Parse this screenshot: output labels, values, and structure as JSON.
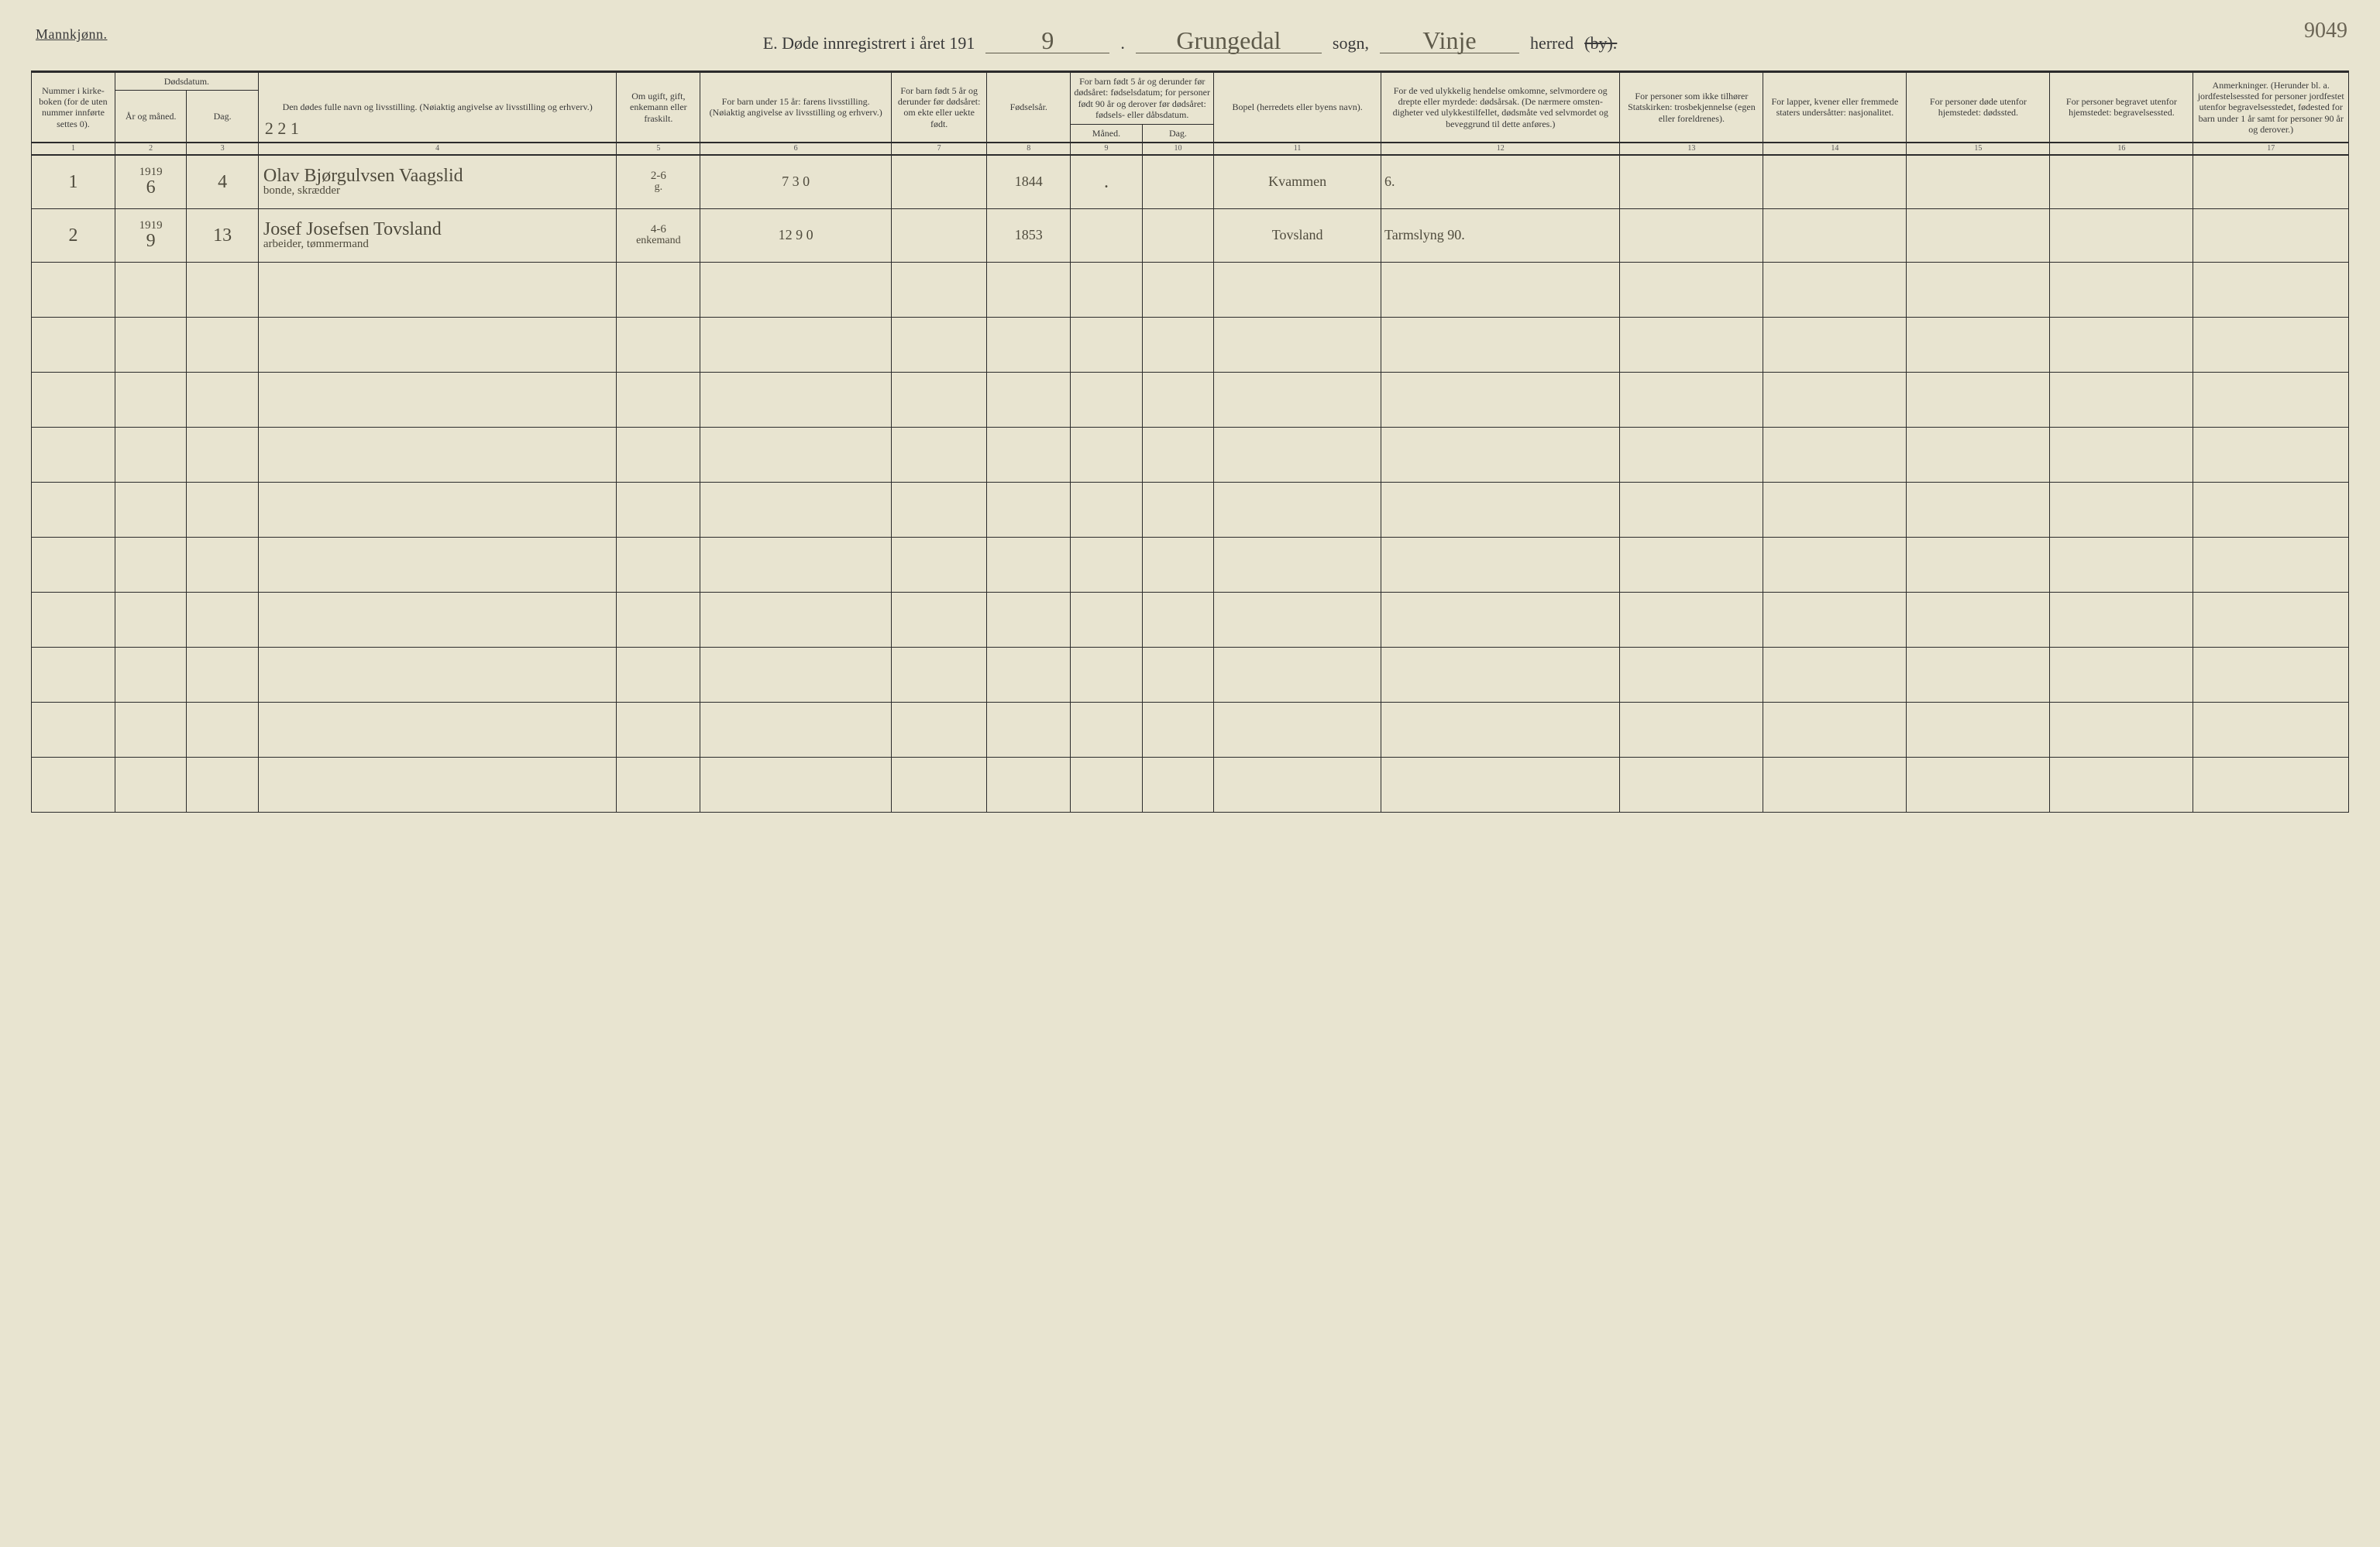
{
  "page_number_handwritten": "9049",
  "corner_label": "Mannkjønn.",
  "title": {
    "prefix": "E. Døde innregistrert i året 191",
    "year_digit": "9",
    "dot": ".",
    "parish_word": "sogn,",
    "district_word": "herred",
    "by_struck": "(by).",
    "parish_value": "Grungedal",
    "district_value": "Vinje"
  },
  "headers": {
    "col1": "Nummer i kirke­boken (for de uten nummer innførte settes 0).",
    "col23": "Dødsdatum.",
    "col2": "År og måned.",
    "col3": "Dag.",
    "col4": "Den dødes fulle navn og livsstilling. (Nøiaktig angivelse av livsstilling og erhverv.)",
    "col4_hw": "2 2 1",
    "col5": "Om ugift, gift, enke­mann eller fraskilt.",
    "col6": "For barn under 15 år: farens livsstilling. (Nøiaktig angivelse av livsstilling og erhverv.)",
    "col7": "For barn født 5 år og derunder før dødsåret: om ekte eller uekte født.",
    "col8": "Fødsels­år.",
    "col910_top": "For barn født 5 år og derunder før dødsåret: fødselsdatum; for personer født 90 år og derover før dødsåret: fødsels- eller dåbsdatum.",
    "col9": "Måned.",
    "col10": "Dag.",
    "col11": "Bopel (herredets eller byens navn).",
    "col12": "For de ved ulykkelig hendelse omkomne, selvmordere og drepte eller myrdede: dødsårsak. (De nærmere omsten­digheter ved ulykkes­tilfellet, dødsmåte ved selvmordet og beveg­grund til dette anføres.)",
    "col13": "For personer som ikke tilhører Statskirken: trosbekjennelse (egen eller foreldrenes).",
    "col14": "For lapper, kvener eller fremmede staters undersåtter: nasjonalitet.",
    "col15": "For personer døde utenfor hjemstedet: dødssted.",
    "col16": "For personer begravet utenfor hjemstedet: begravelsessted.",
    "col17": "Anmerkninger. (Herunder bl. a. jordfestelsessted for personer jordfestet utenfor begravelses­stedet, fødested for barn under 1 år samt for personer 90 år og derover.)"
  },
  "colnums": [
    "1",
    "2",
    "3",
    "4",
    "5",
    "6",
    "7",
    "8",
    "9",
    "10",
    "11",
    "12",
    "13",
    "14",
    "15",
    "16",
    "17"
  ],
  "rows": [
    {
      "c1": "1",
      "c2_top": "1919",
      "c2": "6",
      "c3": "4",
      "c4": "Olav Bjørgulvsen Vaagslid",
      "c4_sub": "bonde, skrædder",
      "c5": "g.",
      "c5_top": "2-6",
      "c6": "7 3 0",
      "c7": "",
      "c8": "1844",
      "c9": ".",
      "c10": "",
      "c11": "Kvammen",
      "c12": "6.",
      "c13": "",
      "c14": "",
      "c15": "",
      "c16": "",
      "c17": ""
    },
    {
      "c1": "2",
      "c2_top": "1919",
      "c2": "9",
      "c3": "13",
      "c4": "Josef Josefsen Tovsland",
      "c4_sub": "arbeider, tømmermand",
      "c5": "enke­mand",
      "c5_top": "4-6",
      "c6": "12 9 0",
      "c7": "",
      "c8": "1853",
      "c9": "",
      "c10": "",
      "c11": "Tovsland",
      "c12": "Tarmslyng 90.",
      "c13": "",
      "c14": "",
      "c15": "",
      "c16": "",
      "c17": ""
    }
  ],
  "empty_row_count": 10,
  "colors": {
    "paper": "#e8e4d0",
    "ink": "#2b2b2b",
    "handwriting": "#4f4b3d"
  }
}
